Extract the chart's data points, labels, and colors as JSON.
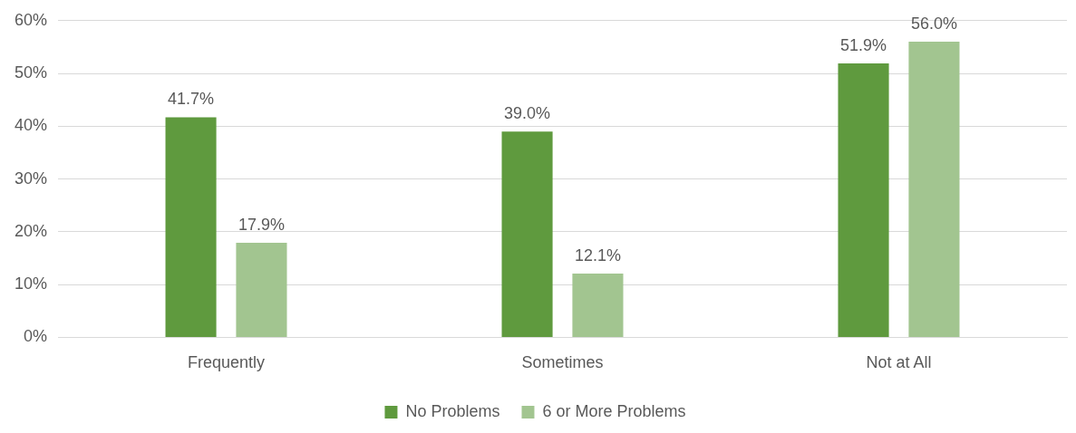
{
  "chart_data": {
    "type": "bar",
    "categories": [
      "Frequently",
      "Sometimes",
      "Not at All"
    ],
    "series": [
      {
        "name": "No Problems",
        "color": "#5f9a3e",
        "values": [
          41.7,
          39.0,
          51.9
        ]
      },
      {
        "name": "6 or More Problems",
        "color": "#a2c590",
        "values": [
          17.9,
          12.1,
          56.0
        ]
      }
    ],
    "ylim": [
      0,
      60
    ],
    "yticks": [
      {
        "value": 0,
        "label": "0%"
      },
      {
        "value": 10,
        "label": "10%"
      },
      {
        "value": 20,
        "label": "20%"
      },
      {
        "value": 30,
        "label": "30%"
      },
      {
        "value": 40,
        "label": "40%"
      },
      {
        "value": 50,
        "label": "50%"
      },
      {
        "value": 60,
        "label": "60%"
      }
    ],
    "grid": "y",
    "legend": "bottom",
    "value_labels": [
      [
        "41.7%",
        "39.0%",
        "51.9%"
      ],
      [
        "17.9%",
        "12.1%",
        "56.0%"
      ]
    ]
  }
}
